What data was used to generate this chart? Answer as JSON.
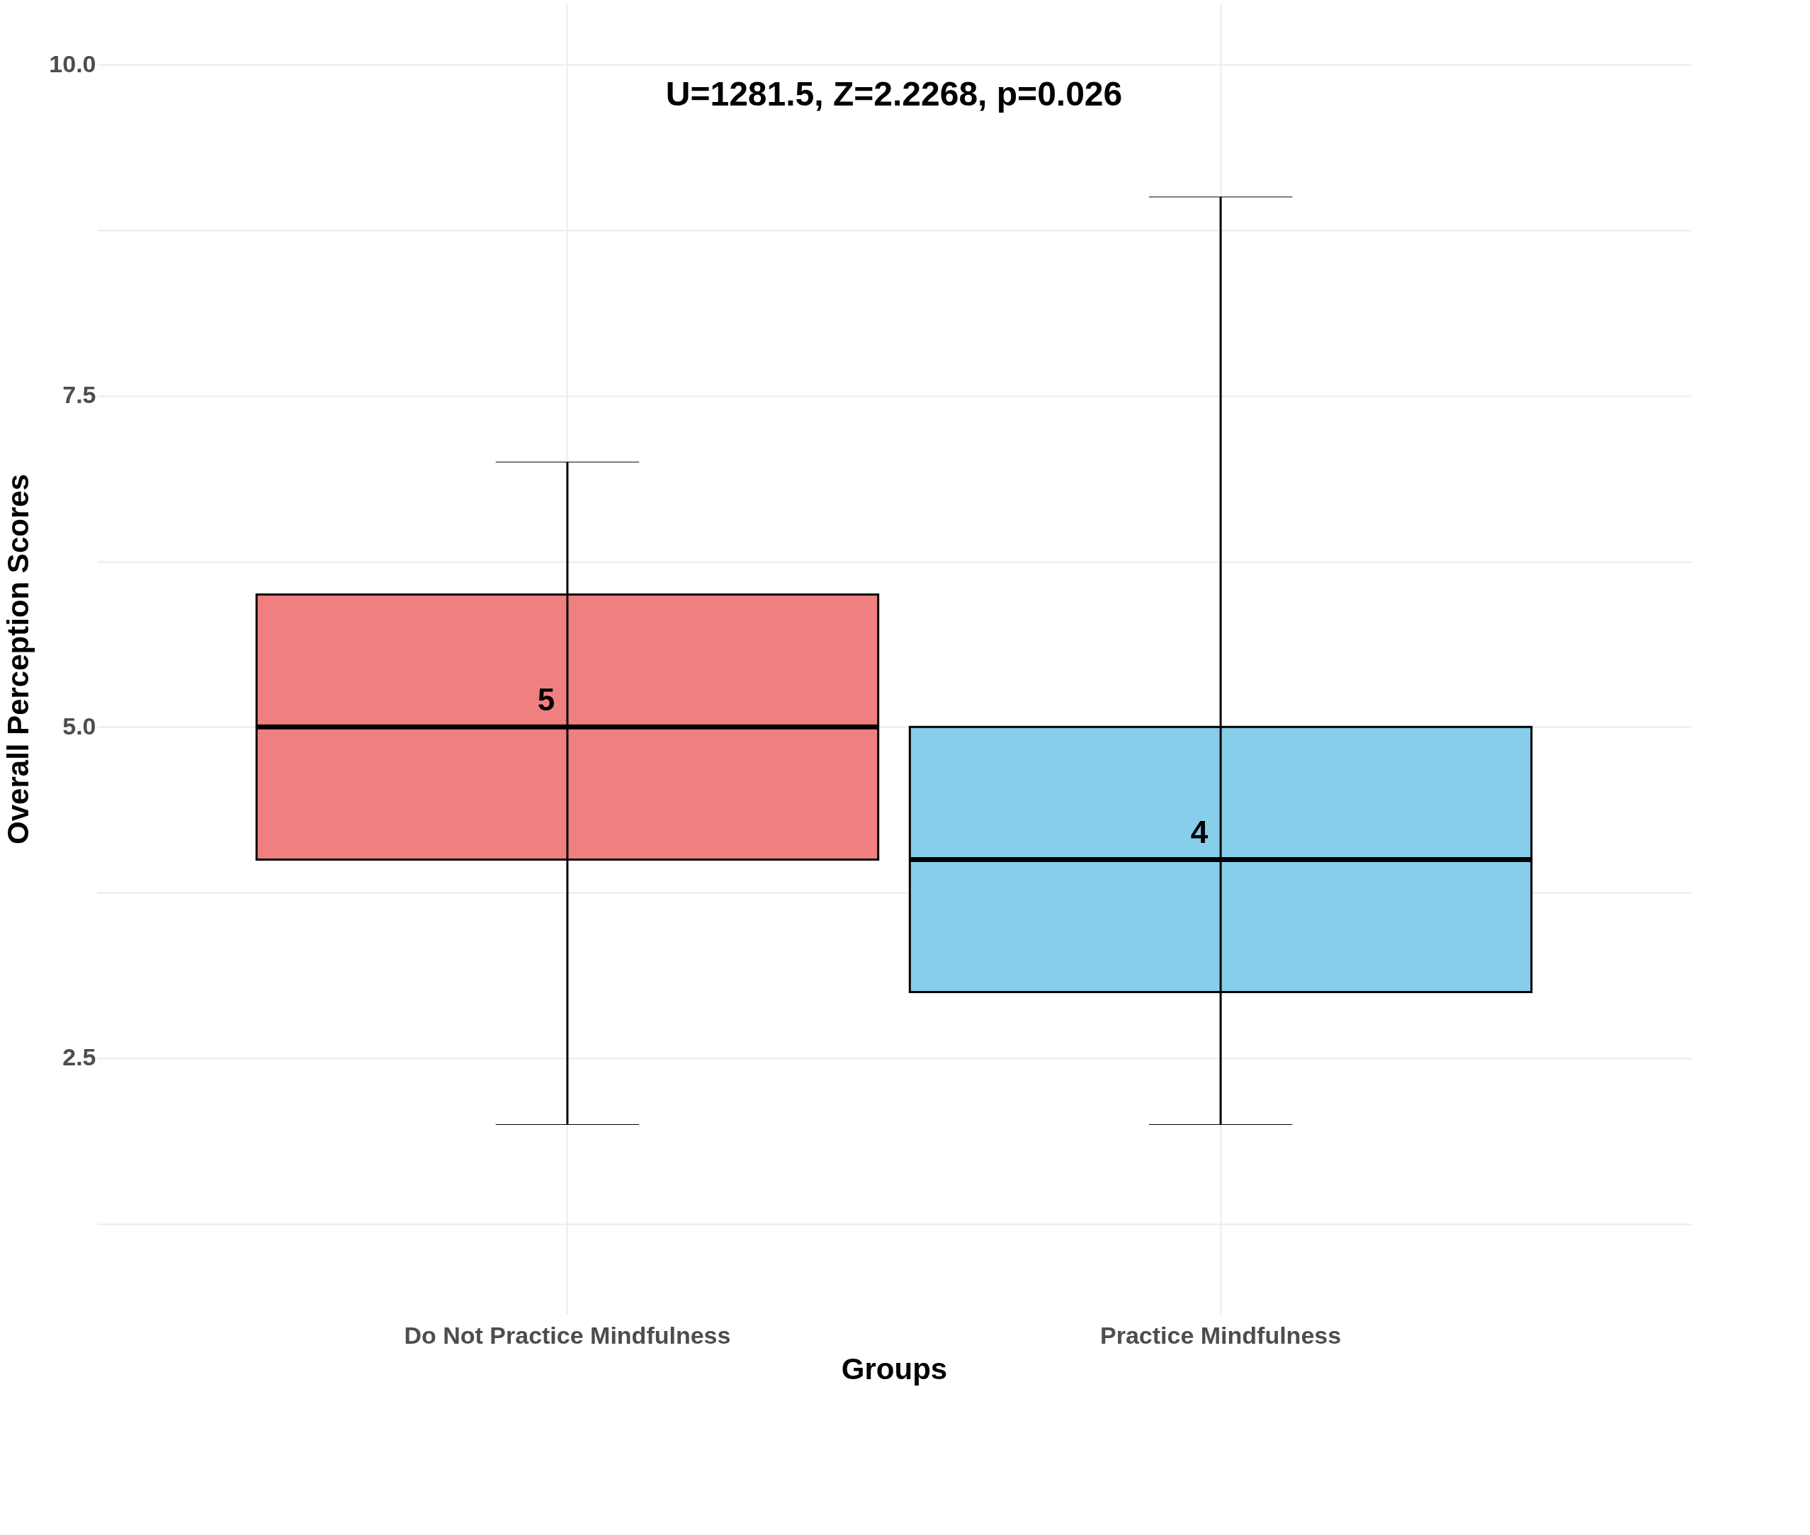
{
  "chart_data": {
    "type": "box",
    "xlabel": "Groups",
    "ylabel": "Overall Perception Scores",
    "categories": [
      "Do Not Practice Mindfulness",
      "Practice Mindfulness"
    ],
    "boxes": [
      {
        "low": 2,
        "q1": 4,
        "median": 5,
        "q3": 6,
        "high": 7
      },
      {
        "low": 2,
        "q1": 3,
        "median": 4,
        "q3": 5,
        "high": 9
      }
    ],
    "colors": [
      "#f08080",
      "#87ceeb"
    ],
    "ylim": [
      0.57,
      10.46
    ],
    "yticks": [
      {
        "value": 1.25,
        "label": null
      },
      {
        "value": 2.5,
        "label": "2.5"
      },
      {
        "value": 3.75,
        "label": null
      },
      {
        "value": 5,
        "label": "5.0"
      },
      {
        "value": 6.25,
        "label": null
      },
      {
        "value": 7.5,
        "label": "7.5"
      },
      {
        "value": 8.75,
        "label": null
      },
      {
        "value": 10,
        "label": "10.0"
      }
    ],
    "grid": true,
    "annotations": [
      "U=1281.5, Z=2.2268, p=0.026",
      {
        "text": "5",
        "x": "Do Not Practice Mindfulness",
        "y": 5
      },
      {
        "text": "4",
        "x": "Practice Mindfulness",
        "y": 4
      }
    ]
  }
}
